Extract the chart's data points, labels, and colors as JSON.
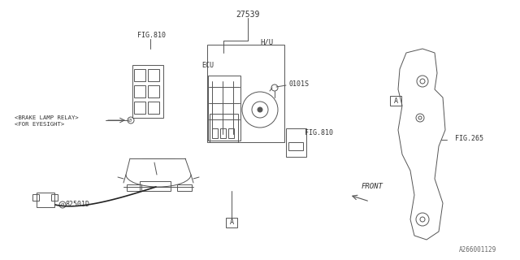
{
  "title": "",
  "background_color": "#ffffff",
  "line_color": "#555555",
  "text_color": "#333333",
  "fig_width": 6.4,
  "fig_height": 3.2,
  "dpi": 100,
  "part_number_27539": "27539",
  "label_HU": "H/U",
  "label_ECU": "ECU",
  "label_0101S": "0101S",
  "label_FIG810_top": "FIG.810",
  "label_FIG810_mid": "FIG.810",
  "label_FIG265": "FIG.265",
  "label_brake": "<BRAKE LAMP RELAY>",
  "label_eyesight": "<FOR EYESIGHT>",
  "label_82501D": "82501D",
  "label_A_bottom": "A",
  "label_A_right": "A",
  "label_FRONT": "FRONT",
  "label_copyright": "A266001129",
  "note_circle_i": "Ø",
  "connector_label": "Ø"
}
